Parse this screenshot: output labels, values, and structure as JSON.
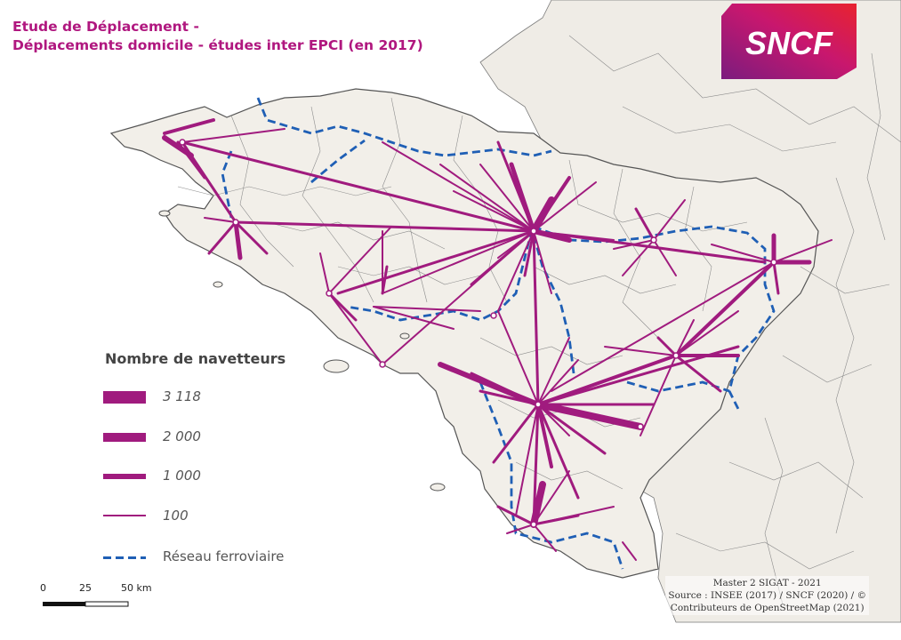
{
  "title_line1": "Etude de Déplacement -",
  "title_line2": "Déplacements domicile - études inter EPCI (en 2017)",
  "logo_text": "SNCF",
  "legend": {
    "title": "Nombre de navetteurs",
    "items": [
      {
        "label": "3 118",
        "value": 3118
      },
      {
        "label": "2 000",
        "value": 2000
      },
      {
        "label": "1 000",
        "value": 1000
      },
      {
        "label": "100",
        "value": 100
      }
    ],
    "rail_label": "Réseau ferroviaire"
  },
  "scale": {
    "labels": [
      "0",
      "25",
      "50 km"
    ]
  },
  "credits": [
    "Master 2 SIGAT - 2021",
    "Source : INSEE (2017) / SNCF (2020) / ©",
    "Contributeurs de OpenStreetMap (2021)"
  ],
  "colors": {
    "flow": "#a01b7e",
    "title": "#b0177f",
    "rail": "#1f5fb5",
    "land": "#f2efe9",
    "sea": "#ffffff",
    "boundary": "#8c8c8c"
  }
}
